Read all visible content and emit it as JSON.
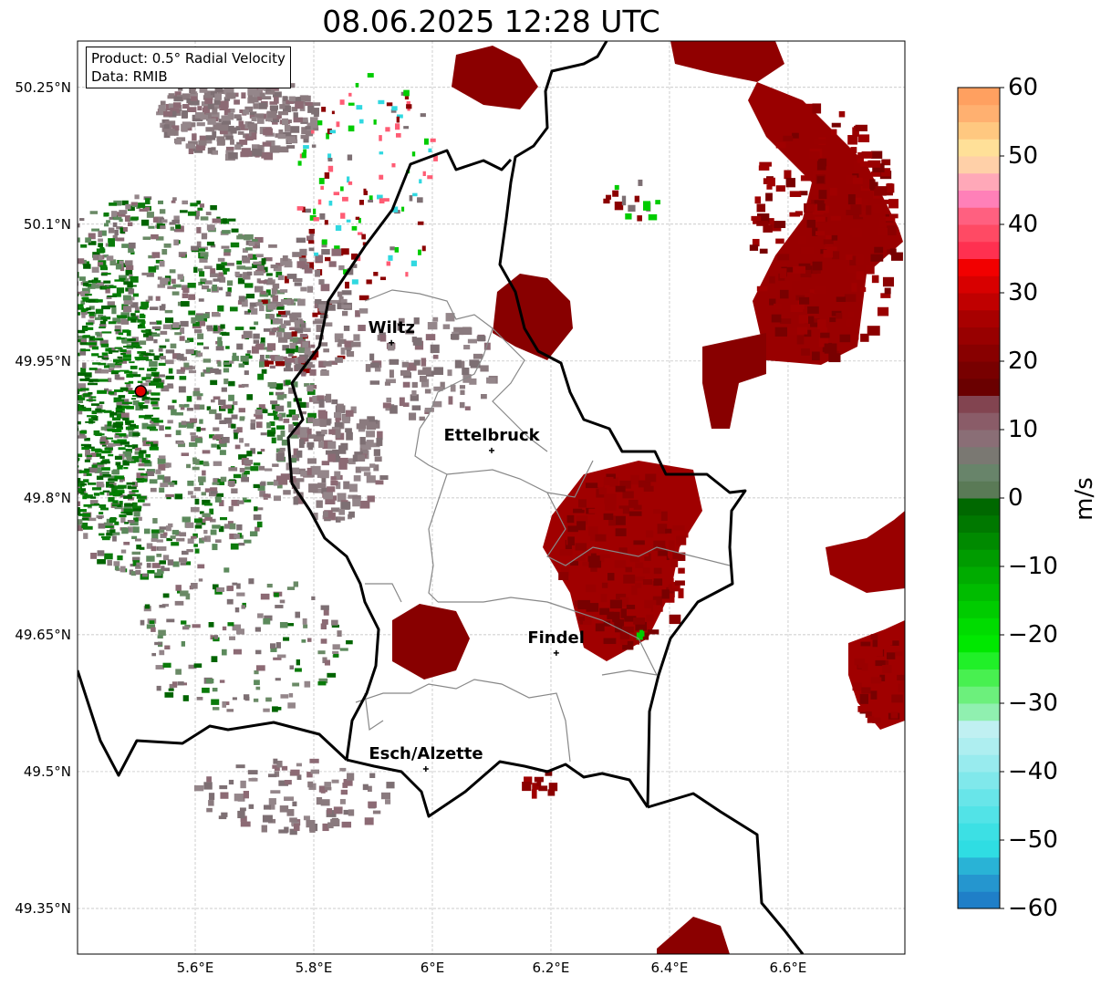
{
  "title": "08.06.2025 12:28 UTC",
  "info": {
    "line1": "Product: 0.5° Radial Velocity",
    "line2": "Data: RMIB"
  },
  "chart_data": {
    "type": "heatmap",
    "title": "08.06.2025 12:28 UTC",
    "xlim": [
      5.4015,
      6.797
    ],
    "ylim": [
      49.3,
      50.3007
    ],
    "grid": true,
    "x_ticks": [
      {
        "value": 5.6,
        "label": "5.6°E"
      },
      {
        "value": 5.8,
        "label": "5.8°E"
      },
      {
        "value": 6.0,
        "label": "6°E"
      },
      {
        "value": 6.2,
        "label": "6.2°E"
      },
      {
        "value": 6.4,
        "label": "6.4°E"
      },
      {
        "value": 6.6,
        "label": "6.6°E"
      }
    ],
    "y_ticks": [
      {
        "value": 50.25,
        "label": "50.25°N"
      },
      {
        "value": 50.1,
        "label": "50.1°N"
      },
      {
        "value": 49.95,
        "label": "49.95°N"
      },
      {
        "value": 49.8,
        "label": "49.8°N"
      },
      {
        "value": 49.65,
        "label": "49.65°N"
      },
      {
        "value": 49.5,
        "label": "49.5°N"
      },
      {
        "value": 49.35,
        "label": "49.35°N"
      }
    ],
    "radar_site": {
      "lon": 5.508,
      "lat": 49.917
    },
    "cities": [
      {
        "name": "Wiltz",
        "lon": 5.931,
        "lat": 49.97
      },
      {
        "name": "Ettelbruck",
        "lon": 6.1,
        "lat": 49.852
      },
      {
        "name": "Findel",
        "lon": 6.209,
        "lat": 49.63
      },
      {
        "name": "Esch/Alzette",
        "lon": 5.989,
        "lat": 49.503
      }
    ],
    "colorbar": {
      "label": "m/s",
      "range": [
        -60,
        60
      ],
      "ticks": [
        "−60",
        "−50",
        "−40",
        "−30",
        "−20",
        "−10",
        "0",
        "10",
        "20",
        "30",
        "40",
        "50",
        "60"
      ],
      "tick_values": [
        -60,
        -50,
        -40,
        -30,
        -20,
        -10,
        0,
        10,
        20,
        30,
        40,
        50,
        60
      ],
      "colors": [
        "#1f7fc8",
        "#2596cf",
        "#29b3d6",
        "#2fdde3",
        "#3ce0e4",
        "#52e3e7",
        "#68e5e9",
        "#80e8eb",
        "#98ebee",
        "#aeeef0",
        "#c0f0f2",
        "#90f0b0",
        "#6cf07c",
        "#48f050",
        "#20f028",
        "#00e800",
        "#00dc00",
        "#00cc00",
        "#00bc00",
        "#00ac00",
        "#009c00",
        "#008a00",
        "#007800",
        "#006800",
        "#5a7a56",
        "#68846a",
        "#7a7872",
        "#8a6e76",
        "#8a5c68",
        "#824450",
        "#6a0000",
        "#780000",
        "#880000",
        "#980000",
        "#a80000",
        "#c00000",
        "#d80000",
        "#f20000",
        "#ff3050",
        "#ff4a64",
        "#ff6080",
        "#ff80b8",
        "#ffa8b8",
        "#ffd0a8",
        "#ffe098",
        "#ffc880",
        "#ffb070",
        "#ffa060"
      ]
    }
  }
}
